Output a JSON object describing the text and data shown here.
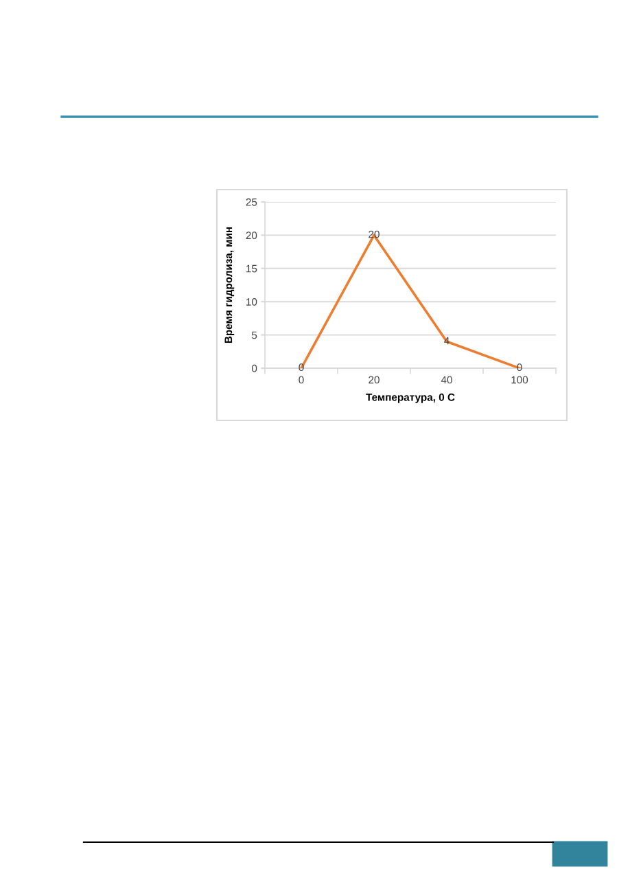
{
  "chart_data": {
    "type": "line",
    "xlabel": "Температура, 0 С",
    "ylabel": "Время гидролиза, мин",
    "categories": [
      "0",
      "20",
      "40",
      "100"
    ],
    "values": [
      0,
      20,
      4,
      0
    ],
    "color": "#ed7d31",
    "ylim": [
      0,
      25
    ],
    "yticks": [
      0,
      5,
      10,
      15,
      20,
      25
    ],
    "grid": "y",
    "data_labels": true,
    "marker": "none",
    "line_style": "solid"
  }
}
